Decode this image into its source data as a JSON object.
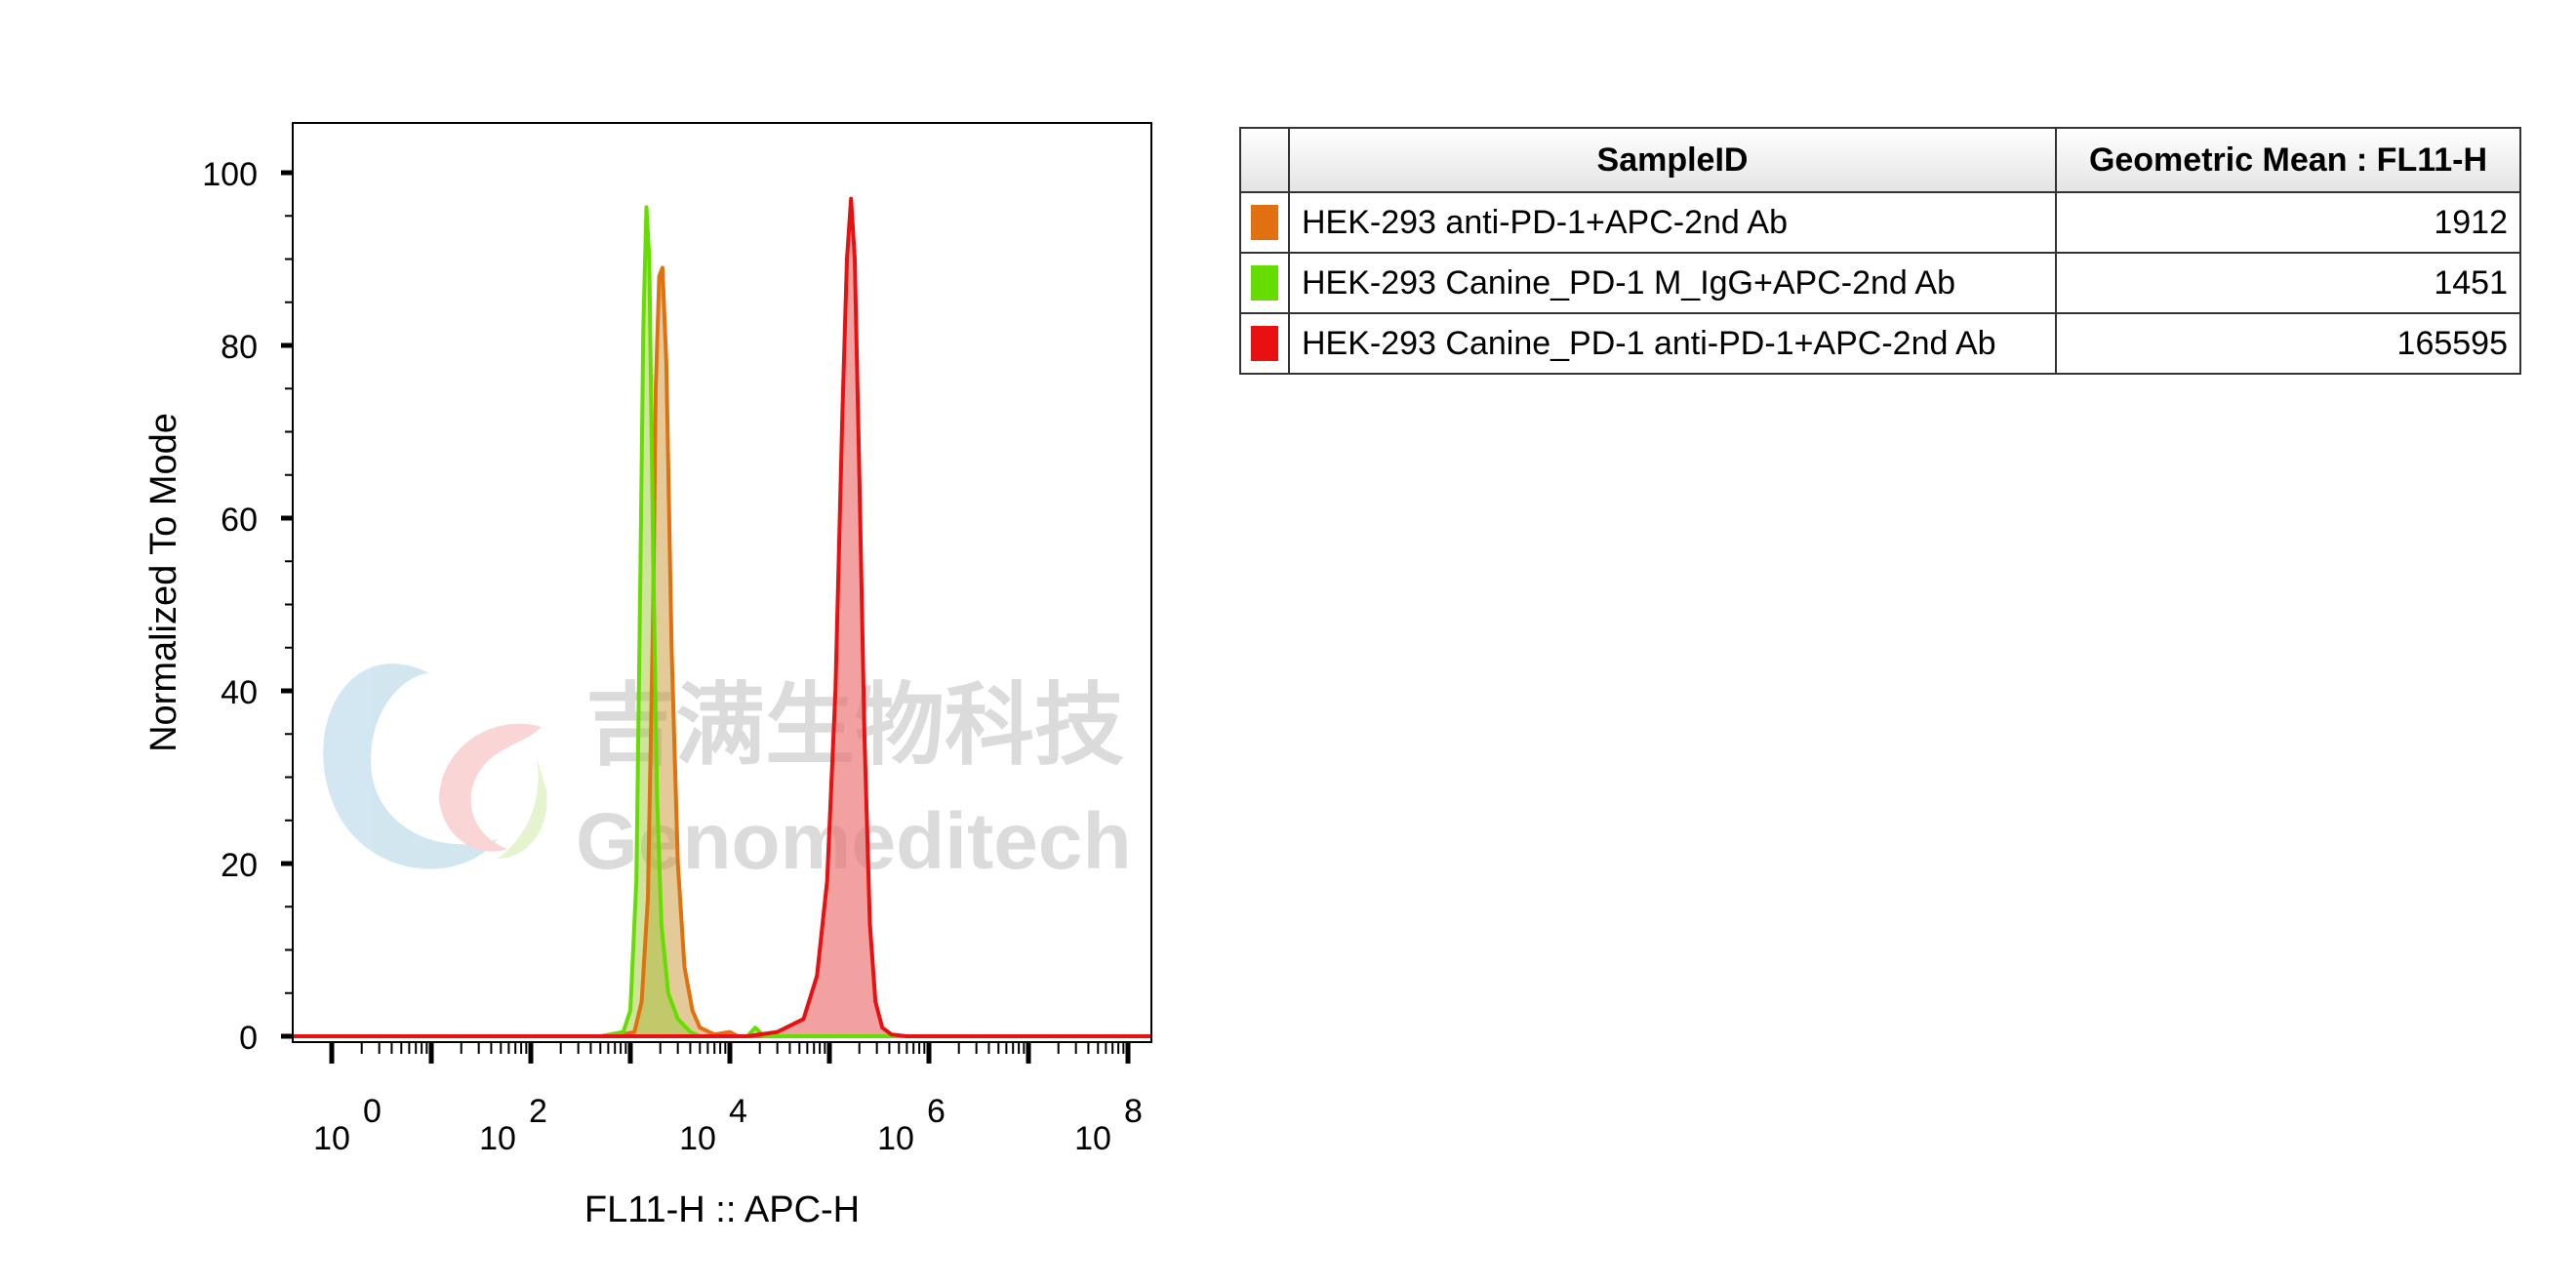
{
  "chart_data": {
    "type": "area",
    "xlabel": "FL11-H :: APC-H",
    "ylabel": "Normalized To Mode",
    "x_scale": "log",
    "xlim": [
      1,
      100000000
    ],
    "ylim": [
      0,
      100
    ],
    "x_ticks": [
      {
        "base": "10",
        "exp": "0",
        "value": 1
      },
      {
        "base": "10",
        "exp": "2",
        "value": 100
      },
      {
        "base": "10",
        "exp": "4",
        "value": 10000
      },
      {
        "base": "10",
        "exp": "6",
        "value": 1000000
      },
      {
        "base": "10",
        "exp": "8",
        "value": 100000000
      }
    ],
    "y_ticks": [
      "0",
      "20",
      "40",
      "60",
      "80",
      "100"
    ],
    "series": [
      {
        "name": "HEK-293 anti-PD-1+APC-2nd Ab",
        "color": "#e07010",
        "fill": "rgba(200,150,50,0.5)",
        "geometric_mean": "1912",
        "points": [
          [
            0.3,
            0
          ],
          [
            700,
            0
          ],
          [
            1100,
            0.5
          ],
          [
            1300,
            4
          ],
          [
            1500,
            16
          ],
          [
            1700,
            50
          ],
          [
            1800,
            75
          ],
          [
            1950,
            88
          ],
          [
            2100,
            89
          ],
          [
            2300,
            78
          ],
          [
            2600,
            45
          ],
          [
            3000,
            20
          ],
          [
            3500,
            8
          ],
          [
            4200,
            3
          ],
          [
            5000,
            1
          ],
          [
            7000,
            0.2
          ],
          [
            10000,
            0.5
          ],
          [
            12000,
            0
          ],
          [
            300000000,
            0
          ]
        ]
      },
      {
        "name": "HEK-293 Canine_PD-1 M_IgG+APC-2nd Ab",
        "color": "#66dd00",
        "fill": "rgba(160,200,60,0.5)",
        "geometric_mean": "1451",
        "points": [
          [
            0.3,
            0
          ],
          [
            500,
            0
          ],
          [
            850,
            0.5
          ],
          [
            1000,
            3
          ],
          [
            1150,
            18
          ],
          [
            1250,
            50
          ],
          [
            1350,
            82
          ],
          [
            1450,
            96
          ],
          [
            1550,
            90
          ],
          [
            1700,
            55
          ],
          [
            1850,
            28
          ],
          [
            2050,
            13
          ],
          [
            2400,
            5
          ],
          [
            3000,
            2
          ],
          [
            4000,
            0.5
          ],
          [
            5000,
            0
          ],
          [
            15000,
            0
          ],
          [
            18000,
            1
          ],
          [
            22000,
            0
          ],
          [
            300000000,
            0
          ]
        ]
      },
      {
        "name": "HEK-293 Canine_PD-1 anti-PD-1+APC-2nd Ab",
        "color": "#e81010",
        "fill": "rgba(235,110,110,0.65)",
        "geometric_mean": "165595",
        "points": [
          [
            0.3,
            0
          ],
          [
            15000,
            0
          ],
          [
            30000,
            0.5
          ],
          [
            55000,
            2
          ],
          [
            75000,
            7
          ],
          [
            95000,
            18
          ],
          [
            115000,
            40
          ],
          [
            135000,
            72
          ],
          [
            150000,
            90
          ],
          [
            165000,
            97
          ],
          [
            180000,
            90
          ],
          [
            200000,
            65
          ],
          [
            225000,
            35
          ],
          [
            255000,
            13
          ],
          [
            290000,
            4
          ],
          [
            340000,
            1
          ],
          [
            420000,
            0.2
          ],
          [
            600000,
            0
          ],
          [
            300000000,
            0
          ]
        ]
      }
    ]
  },
  "legend_table": {
    "headers": [
      "SampleID",
      "Geometric Mean : FL11-H"
    ]
  },
  "watermark": {
    "chinese": "吉满生物科技",
    "english": "Genomeditech"
  }
}
